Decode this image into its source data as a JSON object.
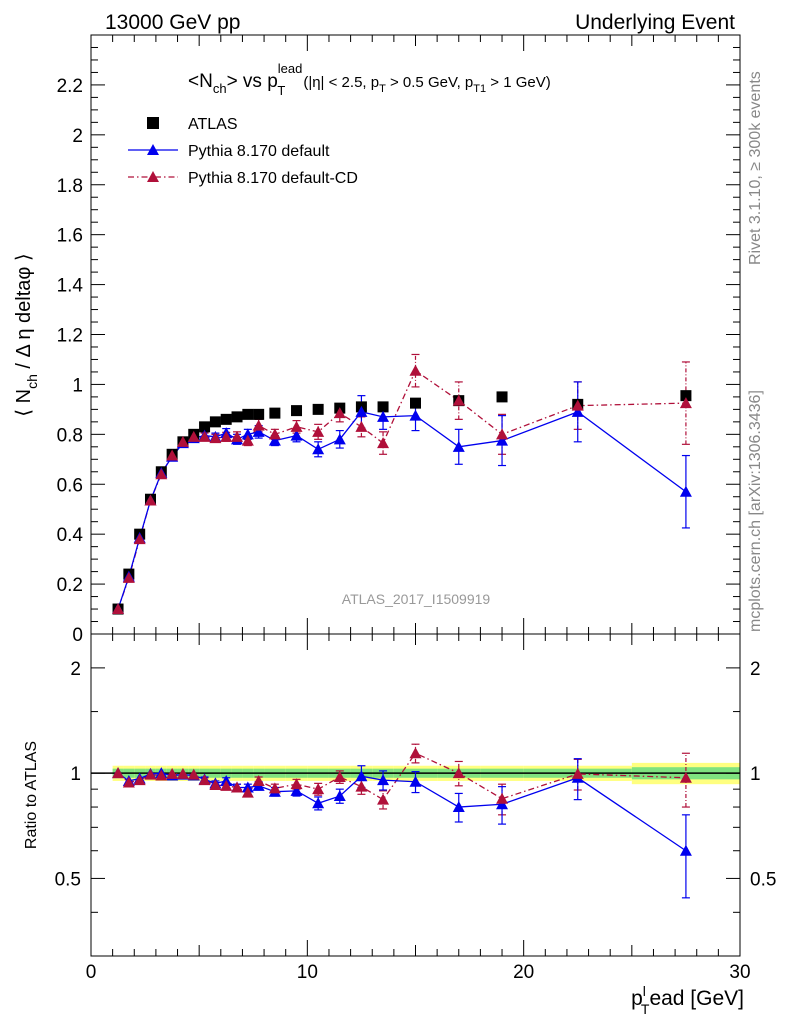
{
  "header": {
    "left": "13000 GeV pp",
    "right": "Underlying Event"
  },
  "plot_title": {
    "main": "<N",
    "main_sub": "ch",
    "main_mid": "> vs p",
    "main_sup": "lead",
    "main_sub2": "T",
    "cuts_1": "(|η| < 2.5, p",
    "cuts_sub_1": "T",
    "cuts_2": " > 0.5 GeV, p",
    "cuts_sub_2": "T1",
    "cuts_3": " > 1 GeV)"
  },
  "side_labels": {
    "rivet": "Rivet 3.1.10, ≥ 300k events",
    "mcplots": "mcplots.cern.ch [arXiv:1306.3436]"
  },
  "analysis_id": "ATLAS_2017_I1509919",
  "colors": {
    "atlas": "#000000",
    "pythia_default": "#0000ee",
    "pythia_cd": "#b0103a",
    "band_inner": "#7fe27f",
    "band_outer": "#ffff80"
  },
  "chart_data": [
    {
      "type": "scatter",
      "panel": "main",
      "ylabel": "⟨ N_ch / Δη deltaφ ⟩",
      "xlim": [
        0,
        30
      ],
      "ylim": [
        0,
        2.4
      ],
      "yticks": [
        "0",
        "0.2",
        "0.4",
        "0.6",
        "0.8",
        "1",
        "1.2",
        "1.4",
        "1.6",
        "1.8",
        "2",
        "2.2"
      ],
      "xticks": [
        "0",
        "10",
        "20",
        "30"
      ],
      "legend_position": "top-left",
      "x": [
        1.25,
        1.75,
        2.25,
        2.75,
        3.25,
        3.75,
        4.25,
        4.75,
        5.25,
        5.75,
        6.25,
        6.75,
        7.25,
        7.75,
        8.5,
        9.5,
        10.5,
        11.5,
        12.5,
        13.5,
        15.0,
        17.0,
        19.0,
        22.5,
        27.5
      ],
      "series": [
        {
          "name": "ATLAS",
          "marker": "square",
          "values": [
            0.1,
            0.24,
            0.4,
            0.54,
            0.65,
            0.72,
            0.77,
            0.8,
            0.83,
            0.85,
            0.86,
            0.87,
            0.88,
            0.88,
            0.885,
            0.895,
            0.9,
            0.905,
            0.91,
            0.91,
            0.925,
            0.935,
            0.95,
            0.92,
            0.955
          ]
        },
        {
          "name": "Pythia 8.170 default",
          "marker": "triangle",
          "line": "solid",
          "values": [
            0.1,
            0.23,
            0.385,
            0.535,
            0.645,
            0.71,
            0.765,
            0.785,
            0.795,
            0.79,
            0.805,
            0.78,
            0.8,
            0.81,
            0.775,
            0.795,
            0.74,
            0.78,
            0.89,
            0.87,
            0.875,
            0.75,
            0.775,
            0.89,
            0.57
          ],
          "errors": [
            0.005,
            0.008,
            0.008,
            0.008,
            0.01,
            0.01,
            0.012,
            0.012,
            0.015,
            0.015,
            0.018,
            0.02,
            0.02,
            0.025,
            0.02,
            0.025,
            0.03,
            0.035,
            0.065,
            0.05,
            0.06,
            0.07,
            0.1,
            0.12,
            0.145
          ]
        },
        {
          "name": "Pythia 8.170 default-CD",
          "marker": "triangle",
          "line": "dash-dot",
          "values": [
            0.1,
            0.225,
            0.38,
            0.535,
            0.64,
            0.715,
            0.77,
            0.79,
            0.79,
            0.785,
            0.79,
            0.79,
            0.775,
            0.835,
            0.8,
            0.83,
            0.81,
            0.885,
            0.83,
            0.765,
            1.055,
            0.935,
            0.8,
            0.915,
            0.925
          ],
          "errors": [
            0.005,
            0.008,
            0.008,
            0.008,
            0.01,
            0.01,
            0.012,
            0.012,
            0.015,
            0.015,
            0.018,
            0.02,
            0.02,
            0.025,
            0.02,
            0.025,
            0.03,
            0.035,
            0.04,
            0.045,
            0.065,
            0.075,
            0.08,
            0.095,
            0.165
          ]
        }
      ]
    },
    {
      "type": "scatter",
      "panel": "ratio",
      "ylabel": "Ratio to ATLAS",
      "xlabel": "p_T^lead [GeV]",
      "xlim": [
        0,
        30
      ],
      "ylim": [
        0.3,
        2.5
      ],
      "yticks": [
        "0.5",
        "1",
        "2"
      ],
      "xticks": [
        "0",
        "10",
        "20",
        "30"
      ],
      "x": [
        1.25,
        1.75,
        2.25,
        2.75,
        3.25,
        3.75,
        4.25,
        4.75,
        5.25,
        5.75,
        6.25,
        6.75,
        7.25,
        7.75,
        8.5,
        9.5,
        10.5,
        11.5,
        12.5,
        13.5,
        15.0,
        17.0,
        19.0,
        22.5,
        27.5
      ],
      "band": {
        "x_edges": [
          1.0,
          1.5,
          2.0,
          2.5,
          3.0,
          3.5,
          4.0,
          4.5,
          5.0,
          5.5,
          6.0,
          6.5,
          7.0,
          7.5,
          8.0,
          9.0,
          10.0,
          11.0,
          12.0,
          13.0,
          14.0,
          16.0,
          18.0,
          20.0,
          25.0,
          30.0
        ],
        "inner": [
          0.03,
          0.03,
          0.03,
          0.03,
          0.03,
          0.03,
          0.03,
          0.03,
          0.03,
          0.03,
          0.03,
          0.03,
          0.03,
          0.03,
          0.03,
          0.03,
          0.03,
          0.03,
          0.03,
          0.03,
          0.03,
          0.03,
          0.03,
          0.03,
          0.04
        ],
        "outer": [
          0.05,
          0.05,
          0.05,
          0.05,
          0.05,
          0.05,
          0.05,
          0.05,
          0.05,
          0.05,
          0.05,
          0.05,
          0.05,
          0.05,
          0.05,
          0.05,
          0.05,
          0.05,
          0.05,
          0.05,
          0.05,
          0.05,
          0.05,
          0.05,
          0.07
        ]
      },
      "series": [
        {
          "name": "Pythia 8.170 default",
          "values": [
            1.0,
            0.95,
            0.965,
            0.995,
            1.0,
            0.985,
            0.99,
            0.985,
            0.96,
            0.935,
            0.95,
            0.91,
            0.91,
            0.92,
            0.885,
            0.89,
            0.82,
            0.86,
            0.98,
            0.955,
            0.945,
            0.8,
            0.815,
            0.97,
            0.6
          ],
          "errors": [
            0.01,
            0.01,
            0.01,
            0.01,
            0.01,
            0.012,
            0.012,
            0.012,
            0.015,
            0.015,
            0.02,
            0.02,
            0.02,
            0.025,
            0.025,
            0.03,
            0.035,
            0.04,
            0.07,
            0.06,
            0.065,
            0.075,
            0.1,
            0.13,
            0.16
          ]
        },
        {
          "name": "Pythia 8.170 default-CD",
          "values": [
            1.0,
            0.94,
            0.955,
            0.99,
            0.985,
            0.995,
            0.995,
            0.99,
            0.955,
            0.925,
            0.92,
            0.91,
            0.88,
            0.95,
            0.905,
            0.93,
            0.9,
            0.975,
            0.915,
            0.84,
            1.14,
            1.0,
            0.845,
            0.995,
            0.97
          ],
          "errors": [
            0.01,
            0.01,
            0.01,
            0.01,
            0.01,
            0.012,
            0.012,
            0.012,
            0.015,
            0.015,
            0.02,
            0.02,
            0.02,
            0.025,
            0.025,
            0.03,
            0.035,
            0.04,
            0.045,
            0.05,
            0.07,
            0.08,
            0.085,
            0.1,
            0.17
          ]
        }
      ]
    }
  ]
}
